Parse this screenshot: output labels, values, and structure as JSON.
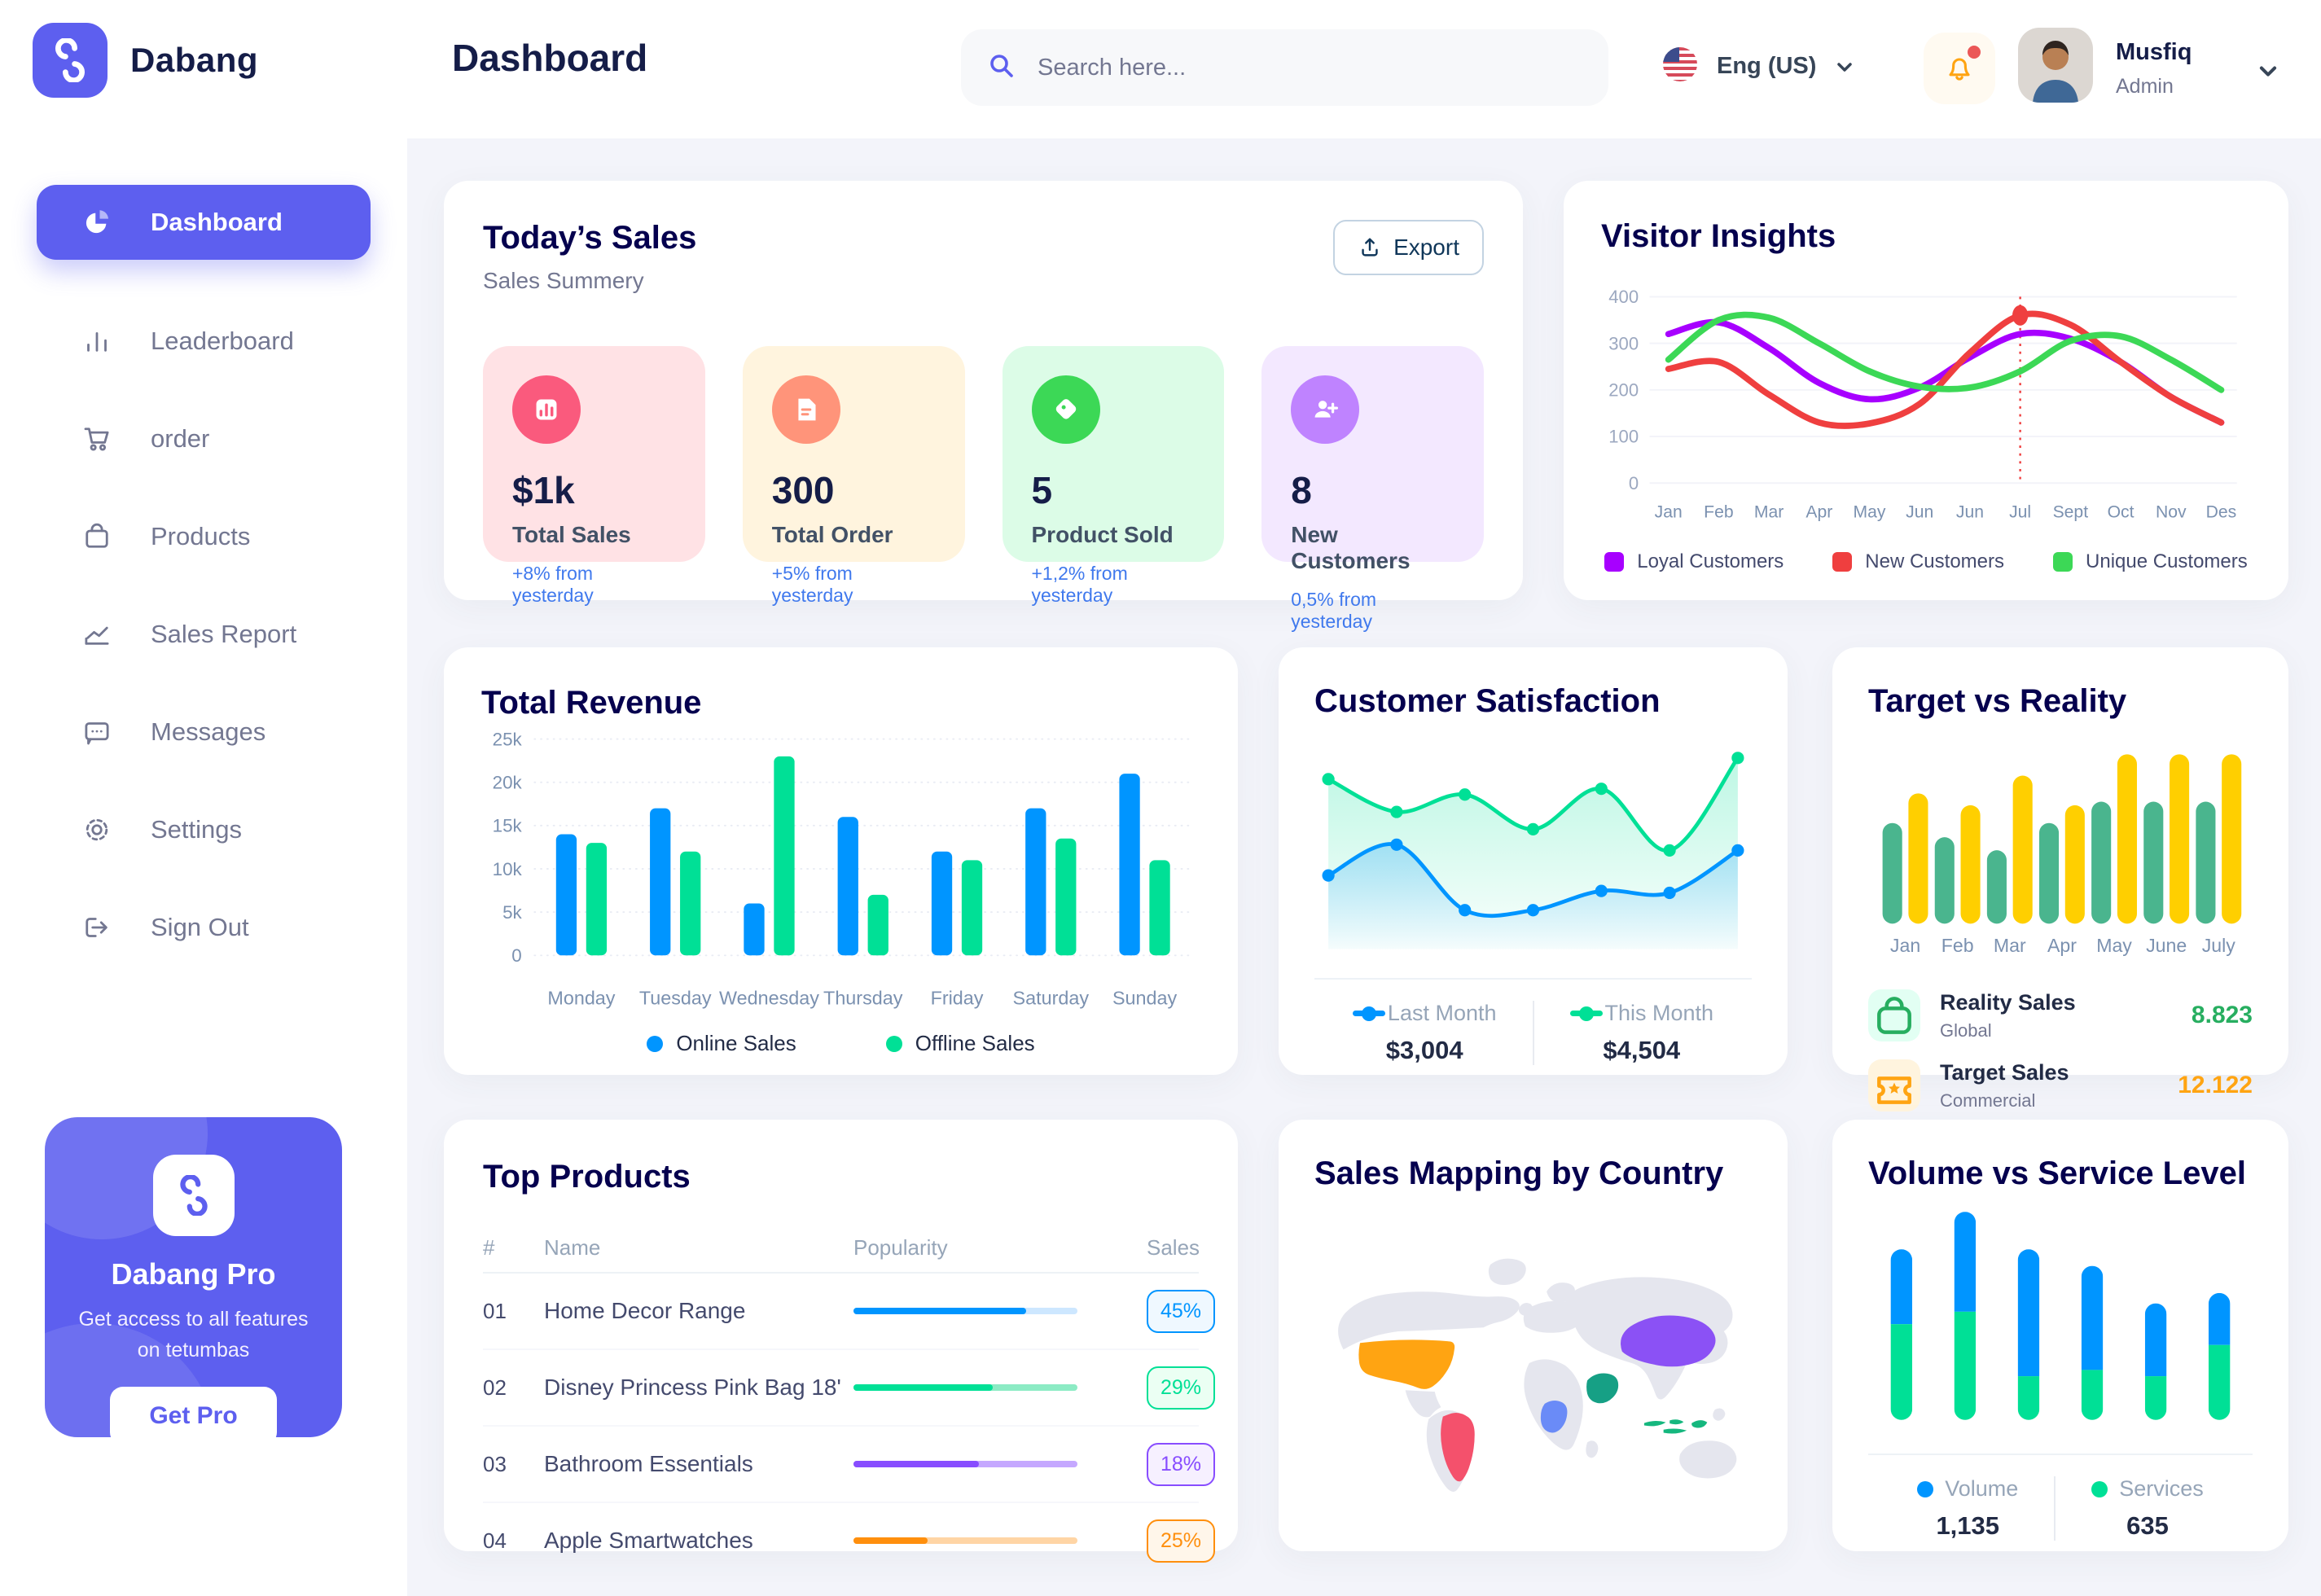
{
  "app": {
    "name": "Dabang"
  },
  "header": {
    "title": "Dashboard",
    "search_placeholder": "Search here...",
    "language": "Eng (US)",
    "user_name": "Musfiq",
    "user_role": "Admin"
  },
  "sidebar": {
    "items": [
      {
        "label": "Dashboard"
      },
      {
        "label": "Leaderboard"
      },
      {
        "label": "order"
      },
      {
        "label": "Products"
      },
      {
        "label": "Sales Report"
      },
      {
        "label": "Messages"
      },
      {
        "label": "Settings"
      },
      {
        "label": "Sign Out"
      }
    ],
    "promo": {
      "title": "Dabang Pro",
      "description": "Get access to all features on tetumbas",
      "button": "Get Pro"
    }
  },
  "today_sales": {
    "title": "Today’s Sales",
    "subtitle": "Sales Summery",
    "export_label": "Export",
    "cards": [
      {
        "value": "$1k",
        "label": "Total Sales",
        "delta": "+8% from yesterday",
        "bg": "#FFE2E5",
        "icon_bg": "#FA5A7D"
      },
      {
        "value": "300",
        "label": "Total Order",
        "delta": "+5% from yesterday",
        "bg": "#FFF4DE",
        "icon_bg": "#FF947A"
      },
      {
        "value": "5",
        "label": "Product Sold",
        "delta": "+1,2% from yesterday",
        "bg": "#DCFCE7",
        "icon_bg": "#3CD856"
      },
      {
        "value": "8",
        "label": "New Customers",
        "delta": "0,5% from yesterday",
        "bg": "#F3E8FF",
        "icon_bg": "#BF83FF"
      }
    ]
  },
  "panels": {
    "visitor_title": "Visitor Insights",
    "revenue_title": "Total Revenue",
    "satisfaction_title": "Customer Satisfaction",
    "target_title": "Target vs Reality",
    "products_title": "Top Products",
    "map_title": "Sales Mapping by Country",
    "volume_title": "Volume vs Service Level"
  },
  "chart_data": [
    {
      "id": "visitor",
      "type": "line",
      "title": "Visitor Insights",
      "x": [
        "Jan",
        "Feb",
        "Mar",
        "Apr",
        "May",
        "Jun",
        "Jun",
        "Jul",
        "Sept",
        "Oct",
        "Nov",
        "Des"
      ],
      "ylim": [
        0,
        400
      ],
      "yticks": [
        {
          "v": 0,
          "label": "0"
        },
        {
          "v": 100,
          "label": "100"
        },
        {
          "v": 200,
          "label": "200"
        },
        {
          "v": 300,
          "label": "300"
        },
        {
          "v": 400,
          "label": "400"
        }
      ],
      "series": [
        {
          "name": "Loyal Customers",
          "color": "#A700FF",
          "values": [
            320,
            345,
            290,
            215,
            180,
            205,
            270,
            320,
            310,
            260,
            185,
            130
          ]
        },
        {
          "name": "New Customers",
          "color": "#EF3F3F",
          "values": [
            245,
            260,
            190,
            130,
            128,
            170,
            280,
            360,
            340,
            260,
            185,
            130
          ]
        },
        {
          "name": "Unique Customers",
          "color": "#3CD856",
          "values": [
            265,
            350,
            355,
            300,
            240,
            207,
            205,
            240,
            305,
            315,
            265,
            200
          ]
        }
      ],
      "annotation": {
        "series": 1,
        "index": 7,
        "value": 360,
        "color": "#EF3F3F"
      }
    },
    {
      "id": "revenue",
      "type": "grouped-bar",
      "title": "Total Revenue",
      "categories": [
        "Monday",
        "Tuesday",
        "Wednesday",
        "Thursday",
        "Friday",
        "Saturday",
        "Sunday"
      ],
      "ylim": [
        0,
        25
      ],
      "yticks": [
        {
          "v": 0,
          "label": "0"
        },
        {
          "v": 5,
          "label": "5k"
        },
        {
          "v": 10,
          "label": "10k"
        },
        {
          "v": 15,
          "label": "15k"
        },
        {
          "v": 20,
          "label": "20k"
        },
        {
          "v": 25,
          "label": "25k"
        }
      ],
      "series": [
        {
          "name": "Online Sales",
          "color": "#0095FF",
          "values": [
            14,
            17,
            6,
            16,
            12,
            17,
            21
          ]
        },
        {
          "name": "Offline Sales",
          "color": "#00E096",
          "values": [
            13,
            12,
            23,
            7,
            11,
            13.5,
            11
          ]
        }
      ]
    },
    {
      "id": "satisfaction",
      "type": "area",
      "title": "Customer Satisfaction",
      "ylim": [
        0,
        100
      ],
      "series": [
        {
          "name": "Last Month",
          "total": "$3,004",
          "color": "#0095FF",
          "values": [
            31,
            47,
            13,
            13,
            23,
            22,
            44
          ]
        },
        {
          "name": "This Month",
          "total": "$4,504",
          "color": "#00E096",
          "values": [
            81,
            64,
            73,
            55,
            76,
            44,
            92
          ]
        }
      ]
    },
    {
      "id": "target",
      "type": "pill-bar",
      "title": "Target vs Reality",
      "categories": [
        "Jan",
        "Feb",
        "Mar",
        "Apr",
        "May",
        "June",
        "July"
      ],
      "ylim": [
        0,
        15.5
      ],
      "series": [
        {
          "name": "Reality Sales",
          "color": "#4AB58E",
          "values": [
            8.5,
            7.3,
            6.2,
            8.5,
            10.3,
            10.3,
            10.3
          ]
        },
        {
          "name": "Target Sales",
          "color": "#FFCF00",
          "values": [
            11,
            10,
            12.5,
            10,
            14.3,
            14.3,
            14.3
          ]
        }
      ]
    },
    {
      "id": "volume",
      "type": "stacked-bar",
      "title": "Volume vs Service Level",
      "ylim": [
        0,
        100
      ],
      "series": [
        {
          "name": "Volume",
          "total": "1,135",
          "color": "#0095FF",
          "values": [
            36,
            48,
            61,
            50,
            35,
            25
          ]
        },
        {
          "name": "Services",
          "total": "635",
          "color": "#00E096",
          "values": [
            46,
            52,
            21,
            24,
            21,
            36
          ]
        }
      ]
    }
  ],
  "target_legend": [
    {
      "title": "Reality Sales",
      "sub": "Global",
      "value": "8.823",
      "value_color": "#27AE60",
      "icon_bg": "#E2FFF3",
      "icon_color": "#27AE60"
    },
    {
      "title": "Target Sales",
      "sub": "Commercial",
      "value": "12.122",
      "value_color": "#FFA412",
      "icon_bg": "#FFF4DE",
      "icon_color": "#FFA412"
    }
  ],
  "top_products": {
    "headers": [
      "#",
      "Name",
      "Popularity",
      "Sales"
    ],
    "rows": [
      {
        "id": "01",
        "name": "Home Decor Range",
        "popularity": 77,
        "sales": "45%",
        "color": "#0095FF",
        "track": "#CDE7FF",
        "badge_bg": "#EFF8FF"
      },
      {
        "id": "02",
        "name": "Disney Princess Pink Bag 18'",
        "popularity": 62,
        "sales": "29%",
        "color": "#00E096",
        "track": "#8CEBC4",
        "badge_bg": "#EBFFF3"
      },
      {
        "id": "03",
        "name": "Bathroom Essentials",
        "popularity": 56,
        "sales": "18%",
        "color": "#884DFF",
        "track": "#C5A8FF",
        "badge_bg": "#F6F0FF"
      },
      {
        "id": "04",
        "name": "Apple Smartwatches",
        "popularity": 33,
        "sales": "25%",
        "color": "#FF8F0D",
        "track": "#FFD5A5",
        "badge_bg": "#FFF6EA"
      }
    ]
  },
  "sales_map": {
    "colors": {
      "usa": "#FFA412",
      "brazil": "#F4516C",
      "congo": "#6A8BF7",
      "saudi_arabia": "#16A085",
      "china": "#8B51F5",
      "indonesia": "#15B77E",
      "land": "#E5E6EE"
    }
  }
}
